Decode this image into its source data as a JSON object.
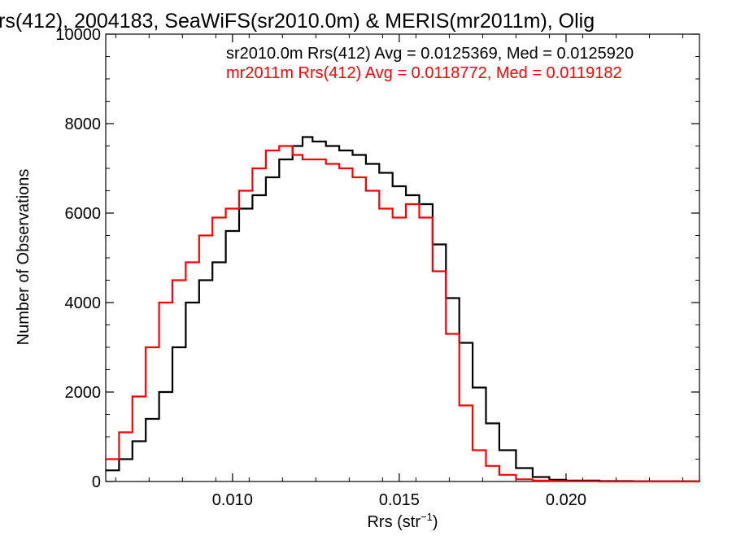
{
  "chart_data": {
    "type": "line",
    "title": "rs(412), 2004183, SeaWiFS(sr2010.0m) & MERIS(mr2011m), Olig",
    "xlabel": "Rrs (str",
    "xlabel_sup": "−1",
    "xlabel_end": ")",
    "ylabel": "Number of Observations",
    "xlim": [
      0.0062,
      0.024
    ],
    "ylim": [
      0,
      10000
    ],
    "x_ticks": [
      0.01,
      0.015,
      0.02
    ],
    "x_tick_labels": [
      "0.010",
      "0.015",
      "0.020"
    ],
    "y_ticks": [
      0,
      2000,
      4000,
      6000,
      8000,
      10000
    ],
    "y_tick_labels": [
      "0",
      "2000",
      "4000",
      "6000",
      "8000",
      "10000"
    ],
    "grid": false,
    "legend_position": "top-right",
    "series": [
      {
        "name": "sr2010.0m",
        "label": "sr2010.0m Rrs(412) Avg = 0.0125369, Med = 0.0125920",
        "color": "#000000",
        "x": [
          0.0062,
          0.0066,
          0.007,
          0.0074,
          0.0078,
          0.0082,
          0.0086,
          0.009,
          0.0094,
          0.0098,
          0.0102,
          0.0106,
          0.011,
          0.0114,
          0.0118,
          0.0121,
          0.0124,
          0.0128,
          0.0132,
          0.0136,
          0.014,
          0.0144,
          0.0148,
          0.0152,
          0.0156,
          0.016,
          0.0164,
          0.0168,
          0.0172,
          0.0176,
          0.018,
          0.0185,
          0.019,
          0.0195,
          0.02,
          0.021,
          0.022,
          0.024
        ],
        "y": [
          250,
          500,
          900,
          1400,
          2000,
          3000,
          4000,
          4500,
          4900,
          5600,
          6100,
          6400,
          6800,
          7200,
          7500,
          7700,
          7600,
          7500,
          7400,
          7300,
          7100,
          6900,
          6600,
          6400,
          6200,
          5300,
          4100,
          3100,
          2100,
          1300,
          700,
          300,
          100,
          40,
          20,
          10,
          5,
          0
        ]
      },
      {
        "name": "mr2011m",
        "label": "mr2011m Rrs(412) Avg = 0.0118772, Med = 0.0119182",
        "color": "#ff0000",
        "x": [
          0.0062,
          0.0066,
          0.007,
          0.0074,
          0.0078,
          0.0082,
          0.0086,
          0.009,
          0.0094,
          0.0098,
          0.0102,
          0.0106,
          0.011,
          0.0114,
          0.0118,
          0.0121,
          0.0124,
          0.0128,
          0.0132,
          0.0136,
          0.014,
          0.0144,
          0.0148,
          0.0152,
          0.0156,
          0.016,
          0.0164,
          0.0168,
          0.0172,
          0.0176,
          0.018,
          0.0185,
          0.019,
          0.0195,
          0.02,
          0.021,
          0.022,
          0.024
        ],
        "y": [
          500,
          1100,
          1900,
          3000,
          4000,
          4500,
          4900,
          5500,
          5900,
          6100,
          6500,
          7000,
          7400,
          7500,
          7300,
          7200,
          7200,
          7100,
          7000,
          6800,
          6500,
          6100,
          5900,
          6200,
          5900,
          4700,
          3300,
          1700,
          700,
          350,
          150,
          50,
          20,
          10,
          5,
          0,
          0,
          0
        ]
      }
    ]
  }
}
